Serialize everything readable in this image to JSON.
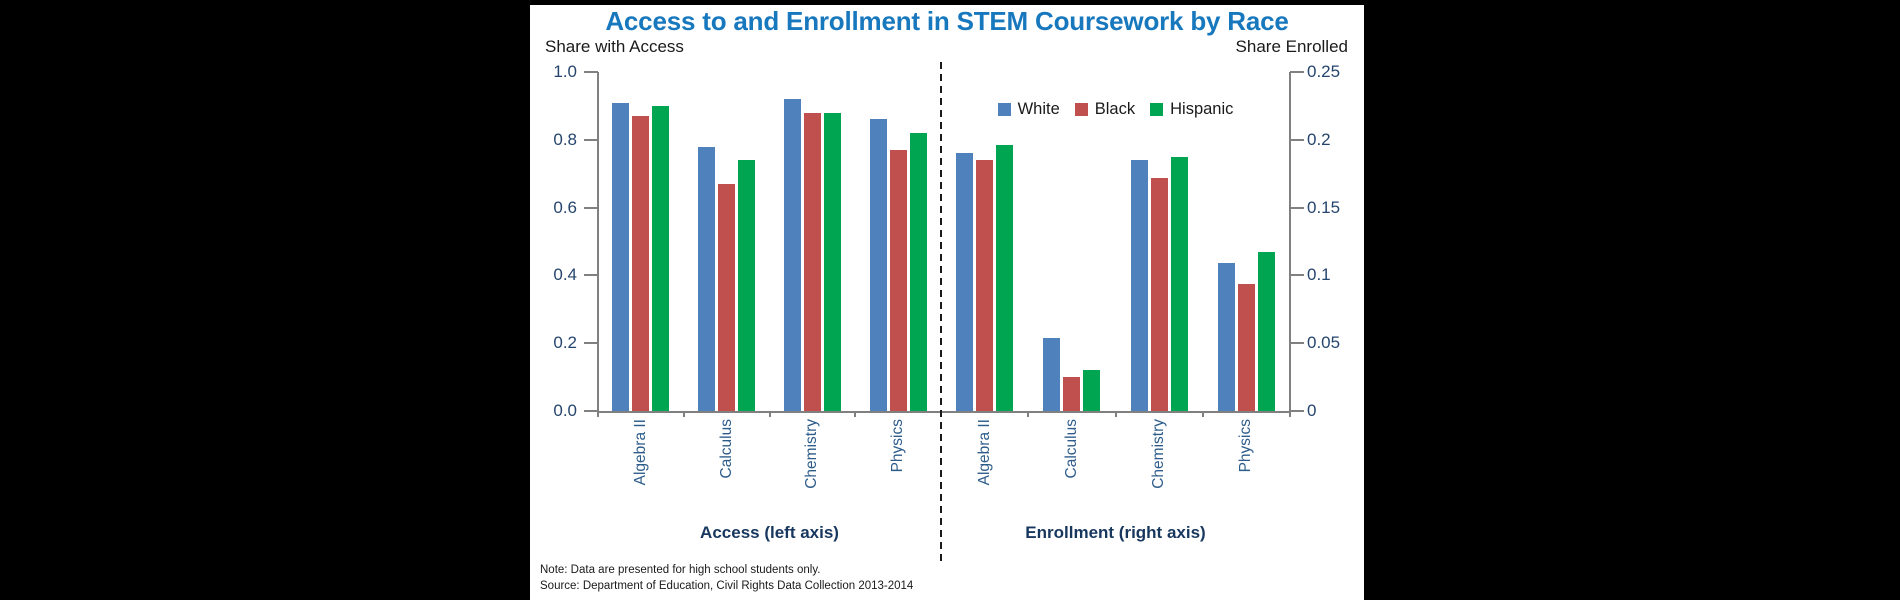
{
  "title": "Access to and Enrollment in STEM Coursework by Race",
  "axis_headers": {
    "left": "Share with Access",
    "right": "Share Enrolled"
  },
  "footnotes": {
    "note": "Note: Data are presented for high school students only.",
    "source": "Source: Department of Education, Civil Rights Data Collection 2013-2014"
  },
  "colors": {
    "background": "#000000",
    "panel": "#ffffff",
    "title": "#1878be",
    "bar_white": "#4f81bd",
    "bar_black": "#c0504d",
    "bar_hispanic": "#00a551",
    "tick_label": "#26456e",
    "category_label": "#2d5c8a",
    "group_label": "#17375e",
    "axis_line": "#808080",
    "divider": "#1a1a1a"
  },
  "chart_data": [
    {
      "type": "bar",
      "group_label": "Access (left axis)",
      "axis": "left",
      "ylabel": "Share with Access",
      "ylim": [
        0,
        1.0
      ],
      "yticks": [
        "1.0",
        "0.8",
        "0.6",
        "0.4",
        "0.2",
        "0.0"
      ],
      "grid": false,
      "categories": [
        "Algebra II",
        "Calculus",
        "Chemistry",
        "Physics"
      ],
      "series": [
        {
          "name": "White",
          "color": "#4f81bd",
          "values": [
            0.91,
            0.78,
            0.92,
            0.86
          ]
        },
        {
          "name": "Black",
          "color": "#c0504d",
          "values": [
            0.87,
            0.67,
            0.88,
            0.77
          ]
        },
        {
          "name": "Hispanic",
          "color": "#00a551",
          "values": [
            0.9,
            0.74,
            0.88,
            0.82
          ]
        }
      ]
    },
    {
      "type": "bar",
      "group_label": "Enrollment (right axis)",
      "axis": "right",
      "ylabel": "Share Enrolled",
      "ylim": [
        0,
        0.25
      ],
      "yticks": [
        "0.25",
        "0.2",
        "0.15",
        "0.1",
        "0.05",
        "0"
      ],
      "grid": false,
      "legend_position": "above right panel, centered",
      "categories": [
        "Algebra II",
        "Calculus",
        "Chemistry",
        "Physics"
      ],
      "series": [
        {
          "name": "White",
          "color": "#4f81bd",
          "values": [
            0.19,
            0.054,
            0.185,
            0.109
          ]
        },
        {
          "name": "Black",
          "color": "#c0504d",
          "values": [
            0.185,
            0.025,
            0.172,
            0.094
          ]
        },
        {
          "name": "Hispanic",
          "color": "#00a551",
          "values": [
            0.196,
            0.03,
            0.187,
            0.117
          ]
        }
      ]
    }
  ]
}
